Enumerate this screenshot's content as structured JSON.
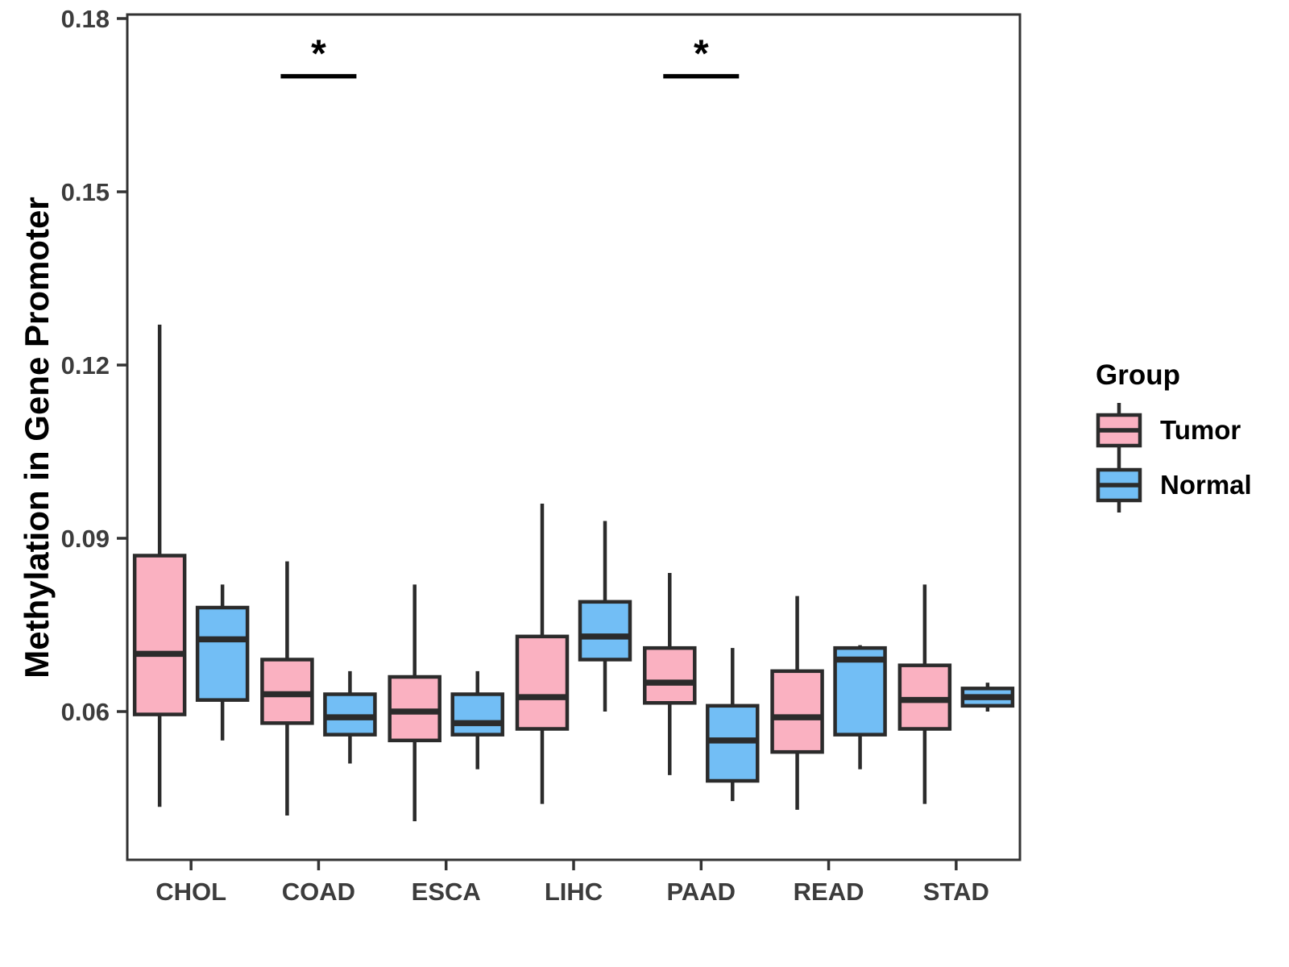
{
  "chart_data": {
    "type": "boxplot",
    "title": "",
    "xlabel": "",
    "ylabel": "Methylation in Gene Promoter",
    "categories": [
      "CHOL",
      "COAD",
      "ESCA",
      "LIHC",
      "PAAD",
      "READ",
      "STAD"
    ],
    "y_ticks": [
      0.06,
      0.09,
      0.12,
      0.15,
      0.18
    ],
    "y_tick_labels": [
      "0.06",
      "0.09",
      "0.12",
      "0.15",
      "0.18"
    ],
    "y_domain": [
      0.034,
      0.181
    ],
    "grid": false,
    "legend": {
      "title": "Group",
      "position": "right",
      "entries": [
        "Tumor",
        "Normal"
      ]
    },
    "groups": [
      {
        "name": "Tumor",
        "fill": "#FAB1C1"
      },
      {
        "name": "Normal",
        "fill": "#72BEF5"
      }
    ],
    "series": [
      {
        "name": "Tumor",
        "boxes": [
          {
            "category": "CHOL",
            "whisker_low": 0.0435,
            "q1": 0.0595,
            "median": 0.07,
            "q3": 0.087,
            "whisker_high": 0.127
          },
          {
            "category": "COAD",
            "whisker_low": 0.042,
            "q1": 0.058,
            "median": 0.063,
            "q3": 0.069,
            "whisker_high": 0.086
          },
          {
            "category": "ESCA",
            "whisker_low": 0.041,
            "q1": 0.055,
            "median": 0.06,
            "q3": 0.066,
            "whisker_high": 0.082
          },
          {
            "category": "LIHC",
            "whisker_low": 0.044,
            "q1": 0.057,
            "median": 0.0625,
            "q3": 0.073,
            "whisker_high": 0.096
          },
          {
            "category": "PAAD",
            "whisker_low": 0.049,
            "q1": 0.0615,
            "median": 0.065,
            "q3": 0.071,
            "whisker_high": 0.084
          },
          {
            "category": "READ",
            "whisker_low": 0.043,
            "q1": 0.053,
            "median": 0.059,
            "q3": 0.067,
            "whisker_high": 0.08
          },
          {
            "category": "STAD",
            "whisker_low": 0.044,
            "q1": 0.057,
            "median": 0.062,
            "q3": 0.068,
            "whisker_high": 0.082
          }
        ]
      },
      {
        "name": "Normal",
        "boxes": [
          {
            "category": "CHOL",
            "whisker_low": 0.055,
            "q1": 0.062,
            "median": 0.0725,
            "q3": 0.078,
            "whisker_high": 0.082
          },
          {
            "category": "COAD",
            "whisker_low": 0.051,
            "q1": 0.056,
            "median": 0.059,
            "q3": 0.063,
            "whisker_high": 0.067
          },
          {
            "category": "ESCA",
            "whisker_low": 0.05,
            "q1": 0.056,
            "median": 0.058,
            "q3": 0.063,
            "whisker_high": 0.067
          },
          {
            "category": "LIHC",
            "whisker_low": 0.06,
            "q1": 0.069,
            "median": 0.073,
            "q3": 0.079,
            "whisker_high": 0.093
          },
          {
            "category": "PAAD",
            "whisker_low": 0.0445,
            "q1": 0.048,
            "median": 0.055,
            "q3": 0.061,
            "whisker_high": 0.071
          },
          {
            "category": "READ",
            "whisker_low": 0.05,
            "q1": 0.056,
            "median": 0.069,
            "q3": 0.071,
            "whisker_high": 0.0715
          },
          {
            "category": "STAD",
            "whisker_low": 0.06,
            "q1": 0.061,
            "median": 0.0625,
            "q3": 0.064,
            "whisker_high": 0.065
          }
        ]
      }
    ],
    "annotations": [
      {
        "category": "COAD",
        "symbol": "*",
        "bar_value": 0.17
      },
      {
        "category": "PAAD",
        "symbol": "*",
        "bar_value": 0.17
      }
    ],
    "colors": {
      "box_border": "#2B2B2B",
      "panel_border": "#333333",
      "axis_text": "#3C3C3C",
      "tick_mark": "#333333",
      "annotation": "#000000",
      "background": "#FFFFFF"
    }
  }
}
